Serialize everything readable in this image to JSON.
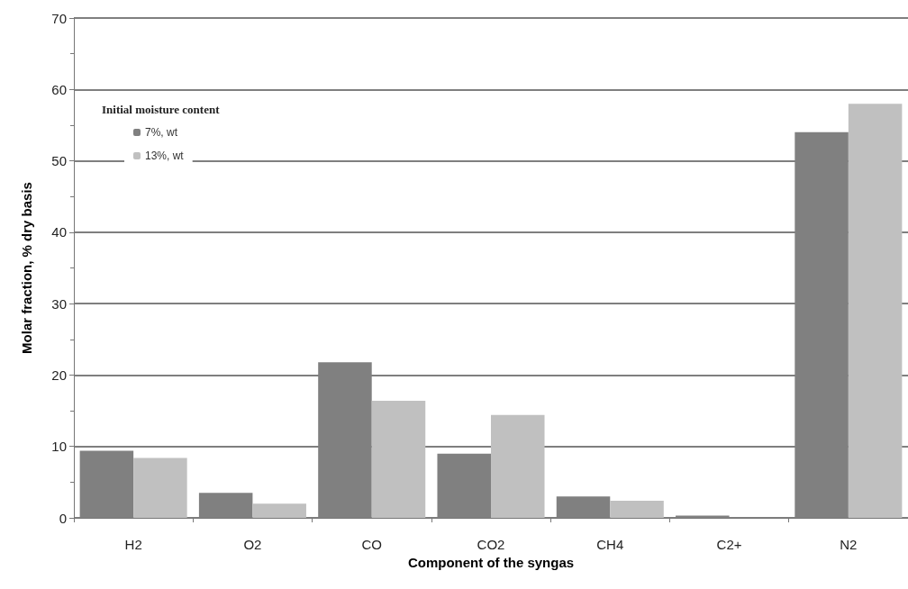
{
  "chart_data": {
    "type": "bar",
    "xlabel": "Component of the syngas",
    "ylabel": "Molar fraction, % dry basis",
    "legend_title": "Initial moisture content",
    "categories": [
      "H2",
      "O2",
      "CO",
      "CO2",
      "CH4",
      "C2+",
      "N2"
    ],
    "series": [
      {
        "name": "7%, wt",
        "color": "#808080",
        "values": [
          9.4,
          3.5,
          21.8,
          9.0,
          3.0,
          0.3,
          54
        ]
      },
      {
        "name": "13%, wt",
        "color": "#c0c0c0",
        "values": [
          8.4,
          2.0,
          16.4,
          14.4,
          2.4,
          null,
          58
        ]
      }
    ],
    "ylim": [
      0,
      70
    ],
    "yticks": [
      0,
      10,
      20,
      30,
      40,
      50,
      60,
      70
    ],
    "grid": "y",
    "legend": "top left"
  }
}
